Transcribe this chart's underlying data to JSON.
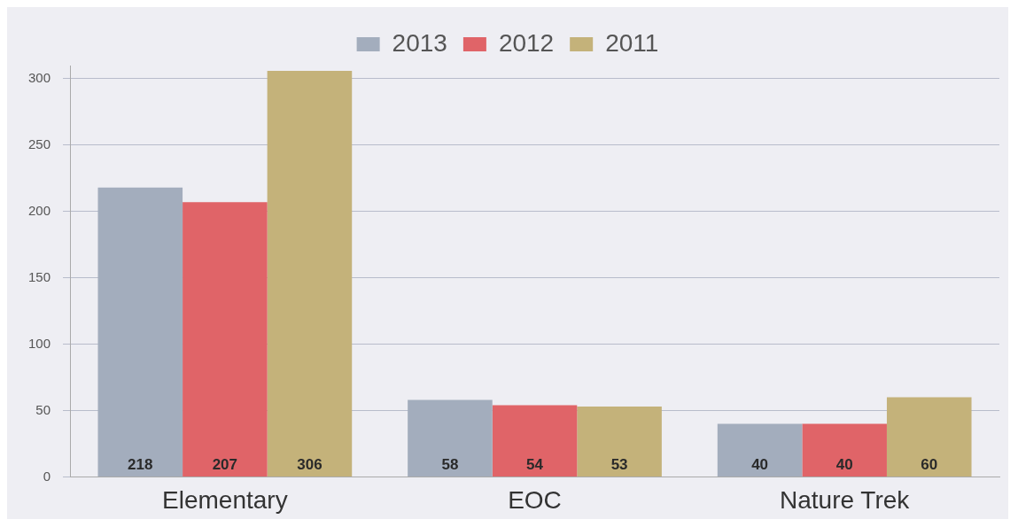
{
  "chart_data": {
    "type": "bar",
    "categories": [
      "Elementary",
      "EOC",
      "Nature Trek"
    ],
    "series": [
      {
        "name": "2013",
        "color": "#a3adbd",
        "values": [
          218,
          58,
          40
        ]
      },
      {
        "name": "2012",
        "color": "#e06468",
        "values": [
          207,
          54,
          40
        ]
      },
      {
        "name": "2011",
        "color": "#c4b27a",
        "values": [
          306,
          53,
          60
        ]
      }
    ],
    "ylim": [
      0,
      310
    ],
    "yticks": [
      0,
      50,
      100,
      150,
      200,
      250,
      300
    ],
    "grid": "y",
    "legend": "top",
    "data_labels": true
  }
}
